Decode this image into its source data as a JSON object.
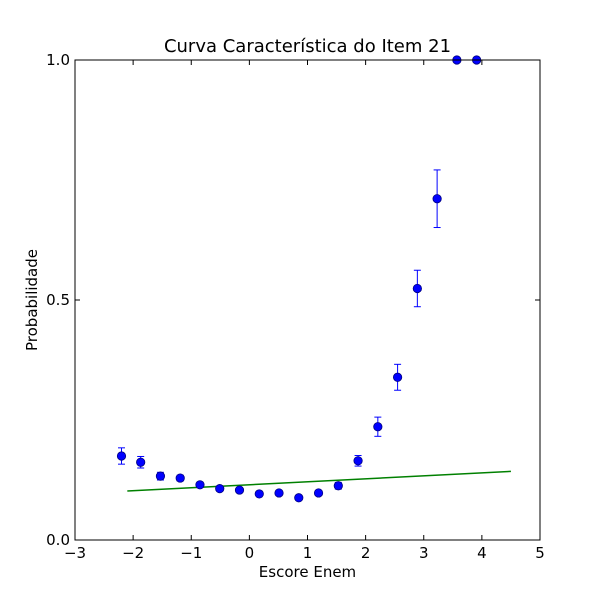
{
  "chart_data": {
    "type": "scatter",
    "title": "Curva Característica do Item 21",
    "xlabel": "Escore Enem",
    "ylabel": "Probabilidade",
    "xlim": [
      -3,
      5
    ],
    "ylim": [
      0,
      1
    ],
    "xticks": [
      -3,
      -2,
      -1,
      0,
      1,
      2,
      3,
      4,
      5
    ],
    "xtick_labels": [
      "−3",
      "−2",
      "−1",
      "0",
      "1",
      "2",
      "3",
      "4",
      "5"
    ],
    "yticks": [
      0,
      0.5,
      1
    ],
    "ytick_labels": [
      "0.0",
      "0.5",
      "1.0"
    ],
    "grid": false,
    "colors": {
      "points": "#0000ff",
      "point_edge": "#000080",
      "fit_line": "#008000",
      "axes": "#000000"
    },
    "series": [
      {
        "type": "scatter_errorbar",
        "x": [
          -2.2,
          -1.87,
          -1.53,
          -1.19,
          -0.85,
          -0.51,
          -0.17,
          0.17,
          0.51,
          0.85,
          1.19,
          1.53,
          1.87,
          2.21,
          2.55,
          2.89,
          3.23,
          3.57,
          3.91
        ],
        "y": [
          0.175,
          0.162,
          0.133,
          0.129,
          0.115,
          0.107,
          0.104,
          0.096,
          0.098,
          0.088,
          0.098,
          0.113,
          0.165,
          0.236,
          0.339,
          0.524,
          0.711,
          1.0,
          1.0
        ],
        "yerr": [
          0.017,
          0.012,
          0.008,
          0.006,
          0.005,
          0.005,
          0.005,
          0.004,
          0.004,
          0.004,
          0.005,
          0.007,
          0.011,
          0.02,
          0.027,
          0.038,
          0.06,
          0.0,
          0.0
        ]
      },
      {
        "type": "line",
        "x": [
          -2.1,
          4.5
        ],
        "y": [
          0.102,
          0.143
        ]
      }
    ]
  }
}
